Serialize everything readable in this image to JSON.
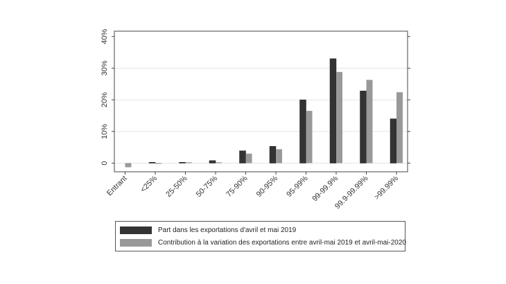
{
  "chart_data": {
    "type": "bar",
    "title": "",
    "xlabel": "",
    "ylabel": "",
    "ylim": [
      -2,
      40
    ],
    "yticks": [
      0,
      10,
      20,
      30,
      40
    ],
    "ytick_labels": [
      "0",
      "10%",
      "20%",
      "30%",
      "40%"
    ],
    "grid": true,
    "legend_position": "bottom",
    "categories": [
      "Entrant",
      "<25%",
      "25-50%",
      "50-75%",
      "75-90%",
      "90-95%",
      "95-99%",
      "99-99.9%",
      "99.9-99.99%",
      ">99.99%"
    ],
    "series": [
      {
        "name": "Part dans les exportations d'avril et mai 2019",
        "color": "#333333",
        "values": [
          0,
          0.2,
          0.2,
          0.8,
          3.9,
          5.3,
          20.0,
          33.0,
          22.8,
          14.0
        ]
      },
      {
        "name": "Contribution à la variation des exportations entre avril-mai 2019 et avril-mai-2020",
        "color": "#999999",
        "values": [
          -1.3,
          -0.1,
          0.1,
          0.2,
          3.0,
          4.4,
          16.5,
          28.8,
          26.3,
          22.4
        ]
      }
    ]
  },
  "legend": {
    "items": [
      {
        "label": "Part dans les exportations d'avril et mai 2019",
        "color": "#333333"
      },
      {
        "label": "Contribution à la variation des exportations entre avril-mai 2019 et avril-mai-2020",
        "color": "#999999"
      }
    ]
  }
}
